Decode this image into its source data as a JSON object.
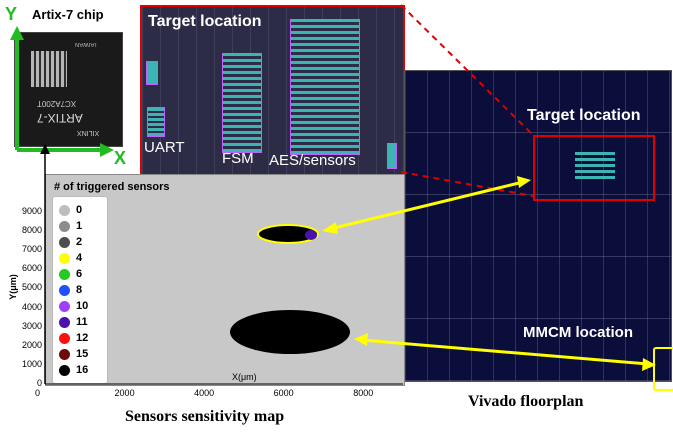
{
  "chip": {
    "title": "Artix-7 chip",
    "axis_y": "Y",
    "axis_x": "X",
    "markings": [
      "XILINX",
      "ARTIX-7",
      "XC7A200T",
      "TAIWAN"
    ]
  },
  "zoom": {
    "title": "Target location",
    "labels": [
      "UART",
      "FSM",
      "AES/sensors"
    ]
  },
  "floorplan": {
    "target_label": "Target location",
    "mmcm_label": "MMCM location",
    "caption": "Vivado floorplan"
  },
  "sensitivity_map": {
    "caption": "Sensors sensitivity map",
    "legend_title": "# of triggered sensors",
    "xlabel": "X(μm)",
    "ylabel": "Y(μm)",
    "xticks": [
      "0",
      "2000",
      "4000",
      "6000",
      "8000"
    ],
    "yticks": [
      "0",
      "1000",
      "2000",
      "3000",
      "4000",
      "5000",
      "6000",
      "7000",
      "8000",
      "9000"
    ],
    "legend": [
      {
        "label": "0",
        "color": "#bdbdbd"
      },
      {
        "label": "1",
        "color": "#8c8c8c"
      },
      {
        "label": "2",
        "color": "#4d4d4d"
      },
      {
        "label": "4",
        "color": "#ffff00"
      },
      {
        "label": "6",
        "color": "#22cc22"
      },
      {
        "label": "8",
        "color": "#1f4fff"
      },
      {
        "label": "10",
        "color": "#a040ff"
      },
      {
        "label": "11",
        "color": "#4a10b0"
      },
      {
        "label": "12",
        "color": "#ff1010"
      },
      {
        "label": "15",
        "color": "#6b0a0a"
      },
      {
        "label": "16",
        "color": "#000000"
      }
    ]
  },
  "colors": {
    "highlight_red": "#e00000",
    "arrow_yellow": "#ffff00",
    "axis_green": "#22bb22"
  }
}
